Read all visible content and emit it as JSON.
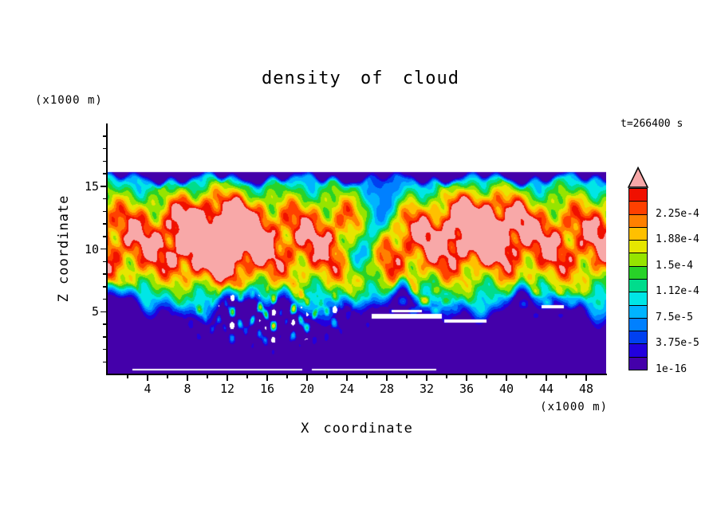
{
  "chart": {
    "title": "density of cloud",
    "xlabel": "X coordinate",
    "ylabel": "Z coordinate",
    "x_unit": "(x1000 m)",
    "y_unit": "(x1000 m)",
    "time_label": "t=266400 s"
  },
  "chart_data": {
    "type": "heatmap",
    "title": "density of cloud",
    "xlabel": "X coordinate",
    "ylabel": "Z coordinate",
    "axis_units": "(x1000 m)",
    "time_annotation": "t=266400 s",
    "x_range": [
      0,
      50
    ],
    "z_axis_range": [
      0,
      20
    ],
    "data_z_range": [
      0,
      16.15
    ],
    "x_ticks": [
      4,
      8,
      12,
      16,
      20,
      24,
      28,
      32,
      36,
      40,
      44,
      48
    ],
    "x_minor_step": 2,
    "y_ticks": [
      5,
      10,
      15
    ],
    "y_minor_step": 1,
    "grid": false,
    "legend_position": "right-colorbar",
    "colorbar": {
      "num_segments": 14,
      "level_step": 1.875e-05,
      "scale_max": 0.0002625,
      "segment_colors": [
        "#4400AA",
        "#2200DD",
        "#0040F0",
        "#0080FF",
        "#00B4FF",
        "#00E6E6",
        "#00DC8C",
        "#28D228",
        "#96E400",
        "#E6E600",
        "#FFC000",
        "#FF8000",
        "#FF4000",
        "#F01000"
      ],
      "overflow_color": "#F8A8A8",
      "labels": [
        {
          "text": "2.25e-4",
          "boundary": 12
        },
        {
          "text": "1.88e-4",
          "boundary": 10
        },
        {
          "text": "1.5e-4",
          "boundary": 8
        },
        {
          "text": "1.12e-4",
          "boundary": 6
        },
        {
          "text": "7.5e-5",
          "boundary": 4
        },
        {
          "text": "3.75e-5",
          "boundary": 2
        },
        {
          "text": "1e-16",
          "boundary": 0
        }
      ]
    },
    "field": {
      "scale_max": 0.0002625,
      "floor": 0.015,
      "data_top_z": 16.15,
      "cloud_top_z": 15.3,
      "cloud_base_z": 6.2,
      "cores": [
        {
          "x": 11.0,
          "z": 10.8,
          "rx": 9.2,
          "rz": 4.3,
          "amp": 1.48
        },
        {
          "x": 37.5,
          "z": 11.3,
          "rx": 8.2,
          "rz": 3.9,
          "amp": 1.42
        }
      ],
      "band": {
        "zc": 10.6,
        "rz": 5.0,
        "amp": 0.97
      },
      "channel": {
        "x": 26.8,
        "rx": 1.9,
        "depth": 0.6
      }
    },
    "description": "Filled-contour plot of cloud density at t=266400 s from a 2D simulation. Two large vortex cores centred near x=11 and x=37.5 (z~11) exceed the colour scale (pale pink, > 2.625e-4). A red high-density band spans z~7-15 across the domain, separated by a cyan channel near x~27. Below z~5 density is near zero (dark violet, 1e-16 level) with turbulent cyan/green speckles around x 10-24 and white (zero) streaks near z~4.5. A thin dark low-density layer caps the cloud at z~15.5-16.15; above that no data (white)."
  }
}
